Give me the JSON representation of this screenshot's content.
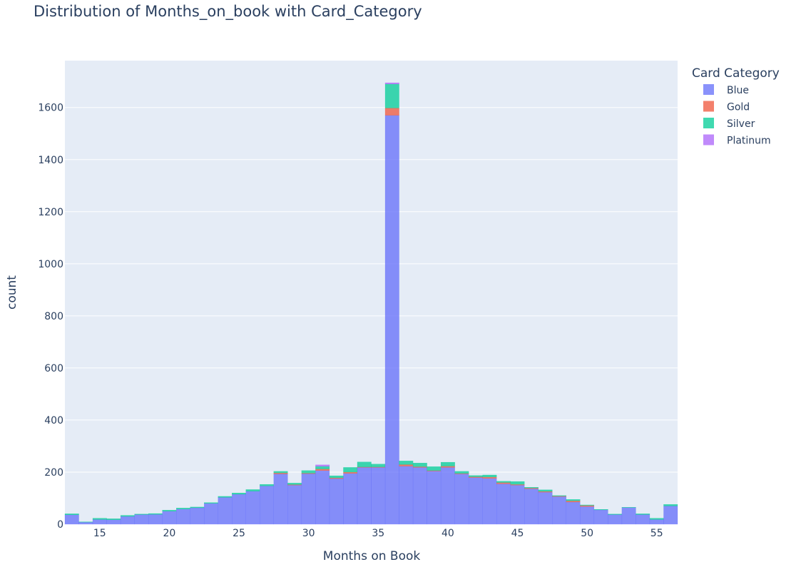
{
  "chart_data": {
    "type": "bar",
    "stacked": true,
    "title": "Distribution of Months_on_book with Card_Category",
    "xlabel": "Months on Book",
    "ylabel": "count",
    "xlim": [
      12.5,
      56.5
    ],
    "ylim": [
      0,
      1780
    ],
    "x_ticks": [
      "15",
      "20",
      "25",
      "30",
      "35",
      "40",
      "45",
      "50",
      "55"
    ],
    "y_ticks": [
      "0",
      "200",
      "400",
      "600",
      "800",
      "1000",
      "1200",
      "1400",
      "1600"
    ],
    "grid": true,
    "legend_position": "right",
    "legend_title": "Card Category",
    "x": [
      13,
      14,
      15,
      16,
      17,
      18,
      19,
      20,
      21,
      22,
      23,
      24,
      25,
      26,
      27,
      28,
      29,
      30,
      31,
      32,
      33,
      34,
      35,
      36,
      37,
      38,
      39,
      40,
      41,
      42,
      43,
      44,
      45,
      46,
      47,
      48,
      49,
      50,
      51,
      52,
      53,
      54,
      55,
      56
    ],
    "series": [
      {
        "name": "Blue",
        "color": "#636efa",
        "values": [
          36,
          8,
          18,
          17,
          30,
          37,
          38,
          50,
          58,
          63,
          80,
          103,
          115,
          127,
          147,
          193,
          150,
          194,
          206,
          175,
          195,
          218,
          218,
          1570,
          223,
          218,
          204,
          218,
          193,
          179,
          176,
          155,
          150,
          136,
          123,
          106,
          85,
          68,
          55,
          37,
          64,
          37,
          18,
          70
        ]
      },
      {
        "name": "Gold",
        "color": "#ef553b",
        "values": [
          0,
          0,
          0,
          0,
          0,
          0,
          0,
          0,
          0,
          0,
          0,
          0,
          0,
          0,
          0,
          4,
          2,
          2,
          6,
          3,
          5,
          2,
          2,
          28,
          6,
          3,
          2,
          5,
          2,
          3,
          5,
          5,
          3,
          3,
          3,
          2,
          5,
          4,
          0,
          0,
          0,
          0,
          0,
          0
        ]
      },
      {
        "name": "Silver",
        "color": "#00cc96",
        "values": [
          4,
          1,
          5,
          4,
          4,
          2,
          3,
          4,
          4,
          3,
          3,
          4,
          5,
          6,
          6,
          6,
          6,
          10,
          10,
          8,
          18,
          19,
          11,
          92,
          14,
          14,
          15,
          15,
          8,
          5,
          8,
          5,
          11,
          3,
          6,
          2,
          5,
          2,
          2,
          2,
          1,
          3,
          5,
          6
        ]
      },
      {
        "name": "Platinum",
        "color": "#ab63fa",
        "values": [
          0,
          0,
          0,
          0,
          0,
          0,
          0,
          0,
          0,
          0,
          0,
          0,
          0,
          0,
          0,
          0,
          0,
          0,
          6,
          0,
          0,
          0,
          0,
          5,
          0,
          0,
          0,
          0,
          0,
          0,
          0,
          0,
          0,
          0,
          0,
          0,
          0,
          0,
          0,
          0,
          0,
          0,
          0,
          0
        ]
      }
    ]
  }
}
